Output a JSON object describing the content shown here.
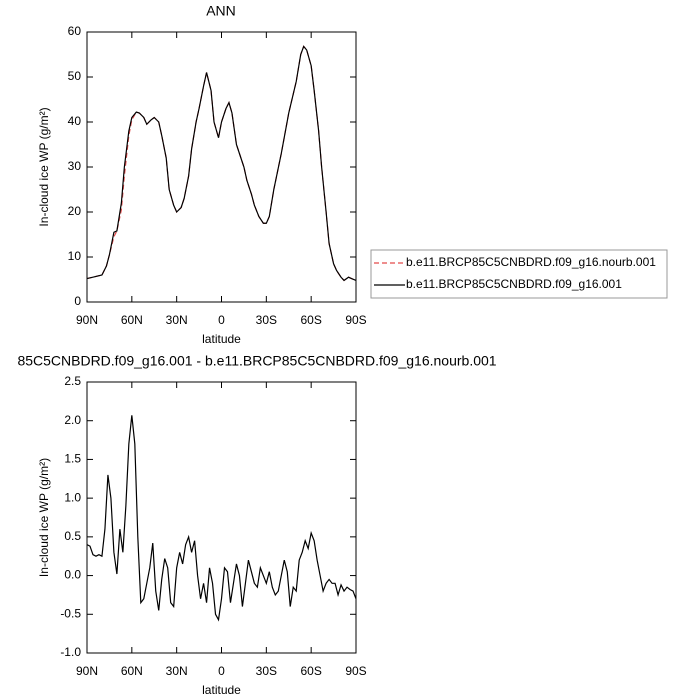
{
  "chart_data": [
    {
      "type": "line",
      "title": "ANN",
      "xlabel": "latitude",
      "ylabel": "In-cloud ice WP (g/m²)",
      "x": [
        90,
        85,
        80,
        77,
        75,
        72,
        70,
        67,
        65,
        62,
        60,
        57,
        55,
        52,
        50,
        47,
        45,
        42,
        40,
        37,
        35,
        32,
        30,
        27,
        25,
        22,
        20,
        17,
        15,
        12,
        10,
        7,
        5,
        2,
        0,
        -3,
        -5,
        -7,
        -10,
        -12,
        -15,
        -17,
        -20,
        -22,
        -25,
        -28,
        -30,
        -32,
        -35,
        -40,
        -45,
        -50,
        -53,
        -55,
        -57,
        -60,
        -62,
        -65,
        -67,
        -70,
        -72,
        -75,
        -77,
        -80,
        -82,
        -85,
        -87,
        -90
      ],
      "series": [
        {
          "name": "b.e11.BRCP85C5CNBDRD.f09_g16.nourb.001",
          "color": "#e34a4a",
          "linestyle": "dashed",
          "values": [
            5.2,
            5.6,
            6.0,
            8.0,
            10.5,
            14.5,
            15.8,
            20.5,
            28,
            37,
            40.5,
            42.2,
            42,
            41,
            39.5,
            40.5,
            41,
            40,
            37,
            32,
            25,
            21.5,
            20,
            21,
            23,
            28,
            34,
            40,
            43,
            48,
            51,
            47,
            40,
            36.5,
            40,
            43,
            44.3,
            42,
            35,
            33,
            30,
            27,
            24,
            21.5,
            19,
            17.5,
            17.5,
            19,
            25,
            33,
            42,
            49,
            55,
            56.8,
            56,
            52.5,
            47,
            38,
            30,
            20,
            13,
            8.5,
            7,
            5.5,
            4.8,
            5.5,
            5.2,
            4.8
          ]
        },
        {
          "name": "b.e11.BRCP85C5CNBDRD.f09_g16.001",
          "color": "#000000",
          "linestyle": "solid",
          "values": [
            5.2,
            5.6,
            6.0,
            8.0,
            10.5,
            15.5,
            15.8,
            22,
            30,
            38,
            41,
            42.2,
            42,
            41,
            39.5,
            40.5,
            41,
            40,
            37,
            32,
            25,
            21.5,
            20,
            21,
            23,
            28,
            34,
            40,
            43,
            48,
            51,
            47,
            40,
            36.5,
            40,
            43,
            44.3,
            42,
            35,
            33,
            30,
            27,
            24,
            21.5,
            19,
            17.5,
            17.5,
            19,
            25,
            33,
            42,
            49,
            55,
            56.8,
            56,
            52.5,
            47,
            38,
            30,
            20,
            13,
            8.5,
            7,
            5.5,
            4.8,
            5.5,
            5.2,
            4.8
          ]
        }
      ],
      "xlim": [
        90,
        -90
      ],
      "xticks": [
        {
          "value": 90,
          "label": "90N"
        },
        {
          "value": 60,
          "label": "60N"
        },
        {
          "value": 30,
          "label": "30N"
        },
        0,
        {
          "value": -30,
          "label": "30S"
        },
        {
          "value": -60,
          "label": "60S"
        },
        {
          "value": -90,
          "label": "90S"
        }
      ],
      "ylim": [
        0,
        60
      ],
      "yticks": [
        0,
        10,
        20,
        30,
        40,
        50,
        60
      ],
      "legend": "right"
    },
    {
      "type": "line",
      "title": "85C5CNBDRD.f09_g16.001 - b.e11.BRCP85C5CNBDRD.f09_g16.nourb.001",
      "xlabel": "latitude",
      "ylabel": "In-cloud ice WP (g/m²)",
      "x": [
        90,
        88,
        86,
        84,
        82,
        80,
        78,
        76,
        74,
        72,
        70,
        68,
        66,
        64,
        62,
        60,
        58,
        56,
        54,
        52,
        50,
        48,
        46,
        44,
        42,
        40,
        38,
        36,
        34,
        32,
        30,
        28,
        26,
        24,
        22,
        20,
        18,
        16,
        14,
        12,
        10,
        8,
        6,
        4,
        2,
        0,
        -2,
        -4,
        -6,
        -8,
        -10,
        -12,
        -14,
        -16,
        -18,
        -20,
        -22,
        -24,
        -26,
        -28,
        -30,
        -32,
        -34,
        -36,
        -38,
        -40,
        -42,
        -44,
        -46,
        -48,
        -50,
        -52,
        -54,
        -56,
        -58,
        -60,
        -62,
        -64,
        -66,
        -68,
        -70,
        -72,
        -74,
        -76,
        -78,
        -80,
        -82,
        -84,
        -86,
        -88,
        -90
      ],
      "series": [
        {
          "color": "#000000",
          "linestyle": "solid",
          "values": [
            0.4,
            0.38,
            0.27,
            0.25,
            0.27,
            0.25,
            0.6,
            1.3,
            1.0,
            0.3,
            0.02,
            0.6,
            0.3,
            0.9,
            1.7,
            2.07,
            1.7,
            0.5,
            -0.35,
            -0.3,
            -0.1,
            0.1,
            0.42,
            -0.2,
            -0.45,
            -0.05,
            0.22,
            0.1,
            -0.35,
            -0.4,
            0.1,
            0.3,
            0.15,
            0.4,
            0.5,
            0.3,
            0.45,
            0.0,
            -0.3,
            -0.1,
            -0.35,
            0.1,
            -0.1,
            -0.5,
            -0.57,
            -0.3,
            0.1,
            0.05,
            -0.35,
            -0.1,
            0.15,
            0.0,
            -0.4,
            -0.1,
            0.2,
            0.05,
            -0.1,
            -0.15,
            0.1,
            0.0,
            -0.1,
            0.05,
            -0.15,
            -0.25,
            -0.2,
            0.0,
            0.2,
            0.05,
            -0.4,
            -0.15,
            -0.2,
            0.2,
            0.3,
            0.45,
            0.35,
            0.55,
            0.45,
            0.2,
            0.0,
            -0.2,
            -0.1,
            -0.05,
            -0.1,
            -0.1,
            -0.25,
            -0.12,
            -0.2,
            -0.15,
            -0.18,
            -0.2,
            -0.3
          ]
        }
      ],
      "xlim": [
        90,
        -90
      ],
      "xticks": [
        {
          "value": 90,
          "label": "90N"
        },
        {
          "value": 60,
          "label": "60N"
        },
        {
          "value": 30,
          "label": "30N"
        },
        0,
        {
          "value": -30,
          "label": "30S"
        },
        {
          "value": -60,
          "label": "60S"
        },
        {
          "value": -90,
          "label": "90S"
        }
      ],
      "ylim": [
        -1.0,
        2.5
      ],
      "yticks": [
        {
          "value": -1.0,
          "label": "-1.0"
        },
        -0.5,
        {
          "value": 0.0,
          "label": "0.0"
        },
        0.5,
        {
          "value": 1.0,
          "label": "1.0"
        },
        1.5,
        {
          "value": 2.0,
          "label": "2.0"
        },
        2.5
      ]
    }
  ]
}
